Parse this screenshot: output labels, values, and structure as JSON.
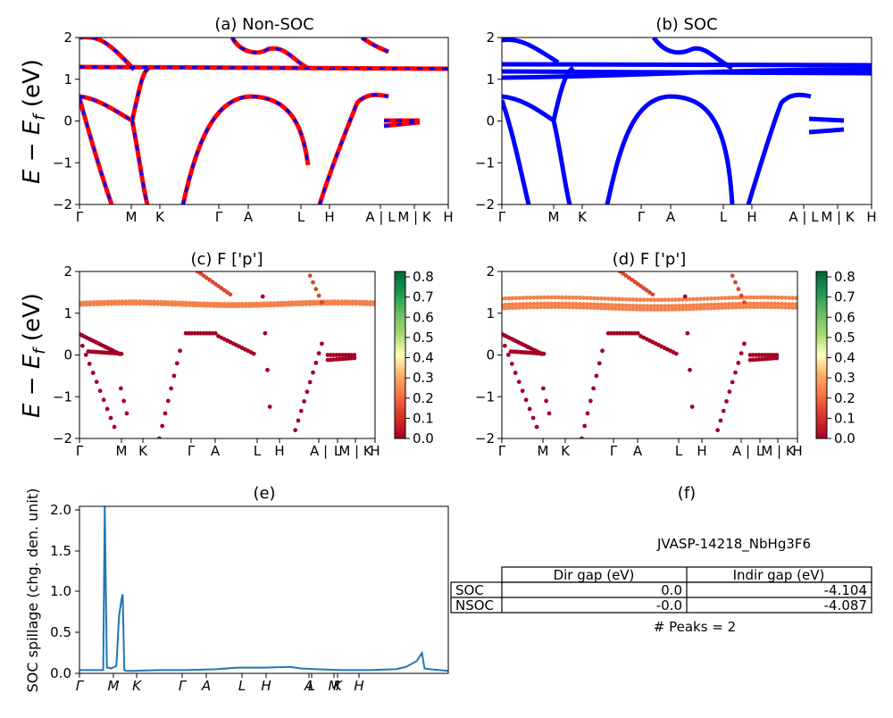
{
  "chart_data": [
    {
      "type": "line",
      "title": "(a) Non-SOC",
      "ylabel": "E − E_f (eV)",
      "ylim": [
        -2,
        2
      ],
      "yticks": [
        "2",
        "1",
        "0",
        "−1",
        "−2"
      ],
      "xticks": [
        "Γ",
        "M",
        "K",
        "Γ",
        "A",
        "L",
        "H",
        "A | L",
        "M | K",
        "H"
      ],
      "series": [
        {
          "color": "#ff0000",
          "style": "solid"
        },
        {
          "color": "#0000ff",
          "style": "dashed"
        }
      ]
    },
    {
      "type": "line",
      "title": "(b) SOC",
      "ylim": [
        -2,
        2
      ],
      "yticks": [
        "2",
        "1",
        "0",
        "−1",
        "−2"
      ],
      "xticks": [
        "Γ",
        "M",
        "K",
        "Γ",
        "A",
        "L",
        "H",
        "A | L",
        "M | K",
        "H"
      ],
      "series": [
        {
          "color": "#0000ff",
          "style": "solid"
        }
      ]
    },
    {
      "type": "scatter",
      "title": "(c)  F ['p']",
      "ylabel": "E − E_f (eV)",
      "ylim": [
        -2,
        2
      ],
      "yticks": [
        "2",
        "1",
        "0",
        "−1",
        "−2"
      ],
      "xticks": [
        "Γ",
        "M",
        "K",
        "Γ",
        "A",
        "L",
        "H",
        "A | L",
        "M | K",
        "H"
      ],
      "colorbar": {
        "colormap": "RdYlGn",
        "range": [
          0.0,
          0.8
        ],
        "ticks": [
          "0.8",
          "0.7",
          "0.6",
          "0.5",
          "0.4",
          "0.3",
          "0.2",
          "0.1",
          "0.0"
        ]
      }
    },
    {
      "type": "scatter",
      "title": "(d) F ['p']",
      "ylim": [
        -2,
        2
      ],
      "yticks": [
        "2",
        "1",
        "0",
        "−1",
        "−2"
      ],
      "xticks": [
        "Γ",
        "M",
        "K",
        "Γ",
        "A",
        "L",
        "H",
        "A | L",
        "M | K",
        "H"
      ],
      "colorbar": {
        "colormap": "RdYlGn",
        "range": [
          0.0,
          0.8
        ],
        "ticks": [
          "0.8",
          "0.7",
          "0.6",
          "0.5",
          "0.4",
          "0.3",
          "0.2",
          "0.1",
          "0.0"
        ]
      }
    },
    {
      "type": "line",
      "title": "(e)",
      "ylabel": "SOC spillage (chg. den. unit)",
      "ylim": [
        0,
        2.05
      ],
      "yticks": [
        "2.0",
        "1.5",
        "1.0",
        "0.5",
        "0.0"
      ],
      "xticks": [
        "Γ",
        "M",
        "K",
        "Γ",
        "A",
        "L",
        "H",
        "A",
        "L",
        "M",
        "K",
        "H"
      ],
      "series": [
        {
          "color": "#1f77b4",
          "x": [
            0.0,
            0.4,
            0.45,
            0.48,
            0.52,
            0.55,
            0.6,
            0.7,
            0.75,
            0.8,
            0.82,
            0.85,
            0.9,
            0.95,
            1.0,
            1.5,
            2.0,
            2.6,
            3.0,
            3.5,
            4.0,
            4.2,
            4.5,
            5.0,
            5.5,
            6.0,
            6.2,
            6.4,
            6.5,
            6.55,
            6.65,
            7.0
          ],
          "y": [
            0.04,
            0.04,
            0.04,
            2.05,
            0.07,
            0.07,
            0.06,
            0.09,
            0.7,
            0.92,
            0.97,
            0.04,
            0.03,
            0.03,
            0.03,
            0.04,
            0.04,
            0.05,
            0.07,
            0.07,
            0.08,
            0.06,
            0.05,
            0.04,
            0.04,
            0.05,
            0.08,
            0.15,
            0.25,
            0.06,
            0.05,
            0.03
          ]
        }
      ]
    },
    {
      "type": "table",
      "title": "(f)",
      "material": "JVASP-14218_NbHg3F6",
      "columns": [
        "Dir gap (eV)",
        "Indir gap (eV)"
      ],
      "rows": [
        {
          "label": "SOC",
          "values": [
            "0.0",
            "-4.104"
          ]
        },
        {
          "label": "NSOC",
          "values": [
            "-0.0",
            "-4.087"
          ]
        }
      ],
      "footer": "# Peaks = 2"
    }
  ]
}
